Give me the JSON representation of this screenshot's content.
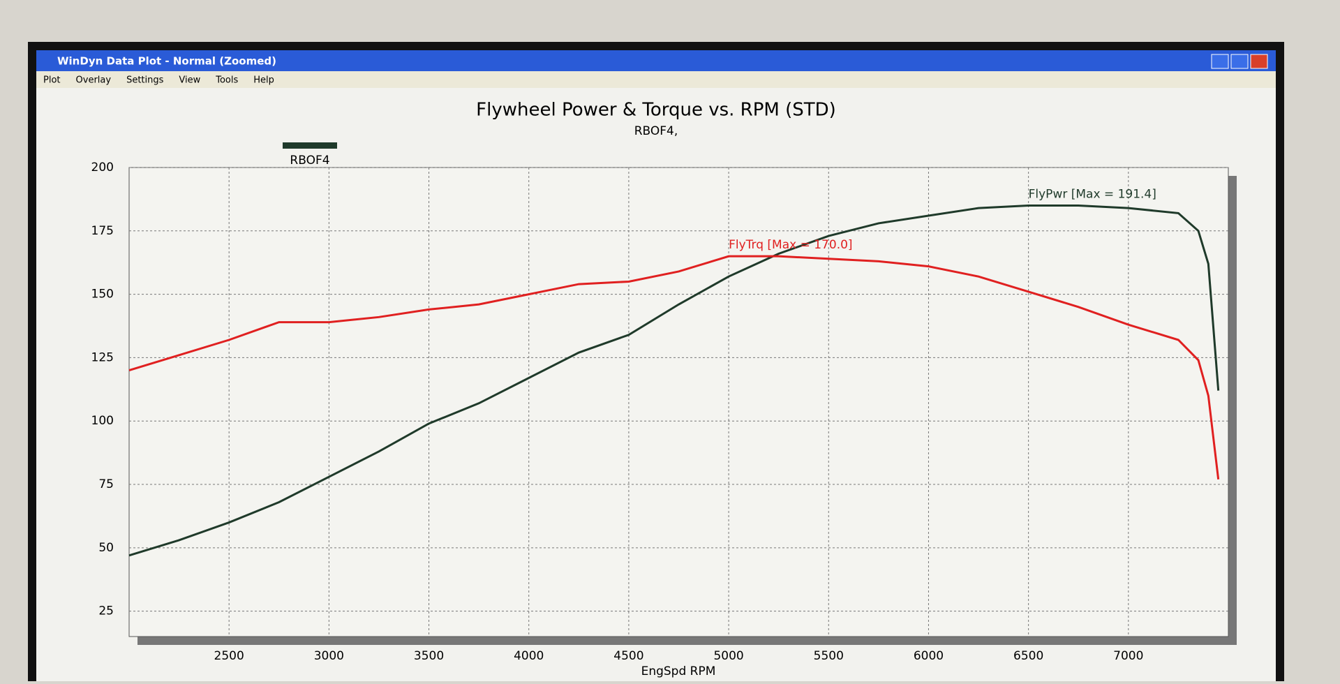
{
  "window": {
    "title": "WinDyn Data Plot - Normal  (Zoomed)",
    "menu": [
      "Plot",
      "Overlay",
      "Settings",
      "View",
      "Tools",
      "Help"
    ]
  },
  "chart_data": {
    "type": "line",
    "title": "Flywheel Power & Torque vs. RPM (STD)",
    "subtitle": "RBOF4,",
    "legend_label": "RBOF4",
    "legend_color": "#1f3a2a",
    "x_label": "EngSpd RPM",
    "xlim": [
      2000,
      7500
    ],
    "xticks": [
      2500,
      3000,
      3500,
      4000,
      4500,
      5000,
      5500,
      6000,
      6500,
      7000
    ],
    "ylim": [
      15,
      200
    ],
    "yticks": [
      25,
      50,
      75,
      100,
      125,
      150,
      175,
      200
    ],
    "grid": true,
    "series": [
      {
        "label": "FlyPwr [Max = 191.4]",
        "color": "#1f3a2a",
        "x": [
          2000,
          2250,
          2500,
          2750,
          3000,
          3250,
          3500,
          3750,
          4000,
          4250,
          4500,
          4750,
          5000,
          5250,
          5500,
          5750,
          6000,
          6250,
          6500,
          6750,
          7000,
          7250,
          7350,
          7400,
          7450
        ],
        "values": [
          47,
          53,
          60,
          68,
          78,
          88,
          99,
          107,
          117,
          127,
          134,
          146,
          157,
          166,
          173,
          178,
          181,
          184,
          185,
          185,
          184,
          182,
          175,
          162,
          112
        ]
      },
      {
        "label": "FlyTrq [Max = 170.0]",
        "color": "#e02020",
        "x": [
          2000,
          2250,
          2500,
          2750,
          3000,
          3250,
          3500,
          3750,
          4000,
          4250,
          4500,
          4750,
          5000,
          5250,
          5500,
          5750,
          6000,
          6250,
          6500,
          6750,
          7000,
          7250,
          7350,
          7400,
          7450
        ],
        "values": [
          120,
          126,
          132,
          139,
          139,
          141,
          144,
          146,
          150,
          154,
          155,
          159,
          165,
          165,
          164,
          163,
          161,
          157,
          151,
          145,
          138,
          132,
          124,
          110,
          77
        ]
      }
    ]
  }
}
